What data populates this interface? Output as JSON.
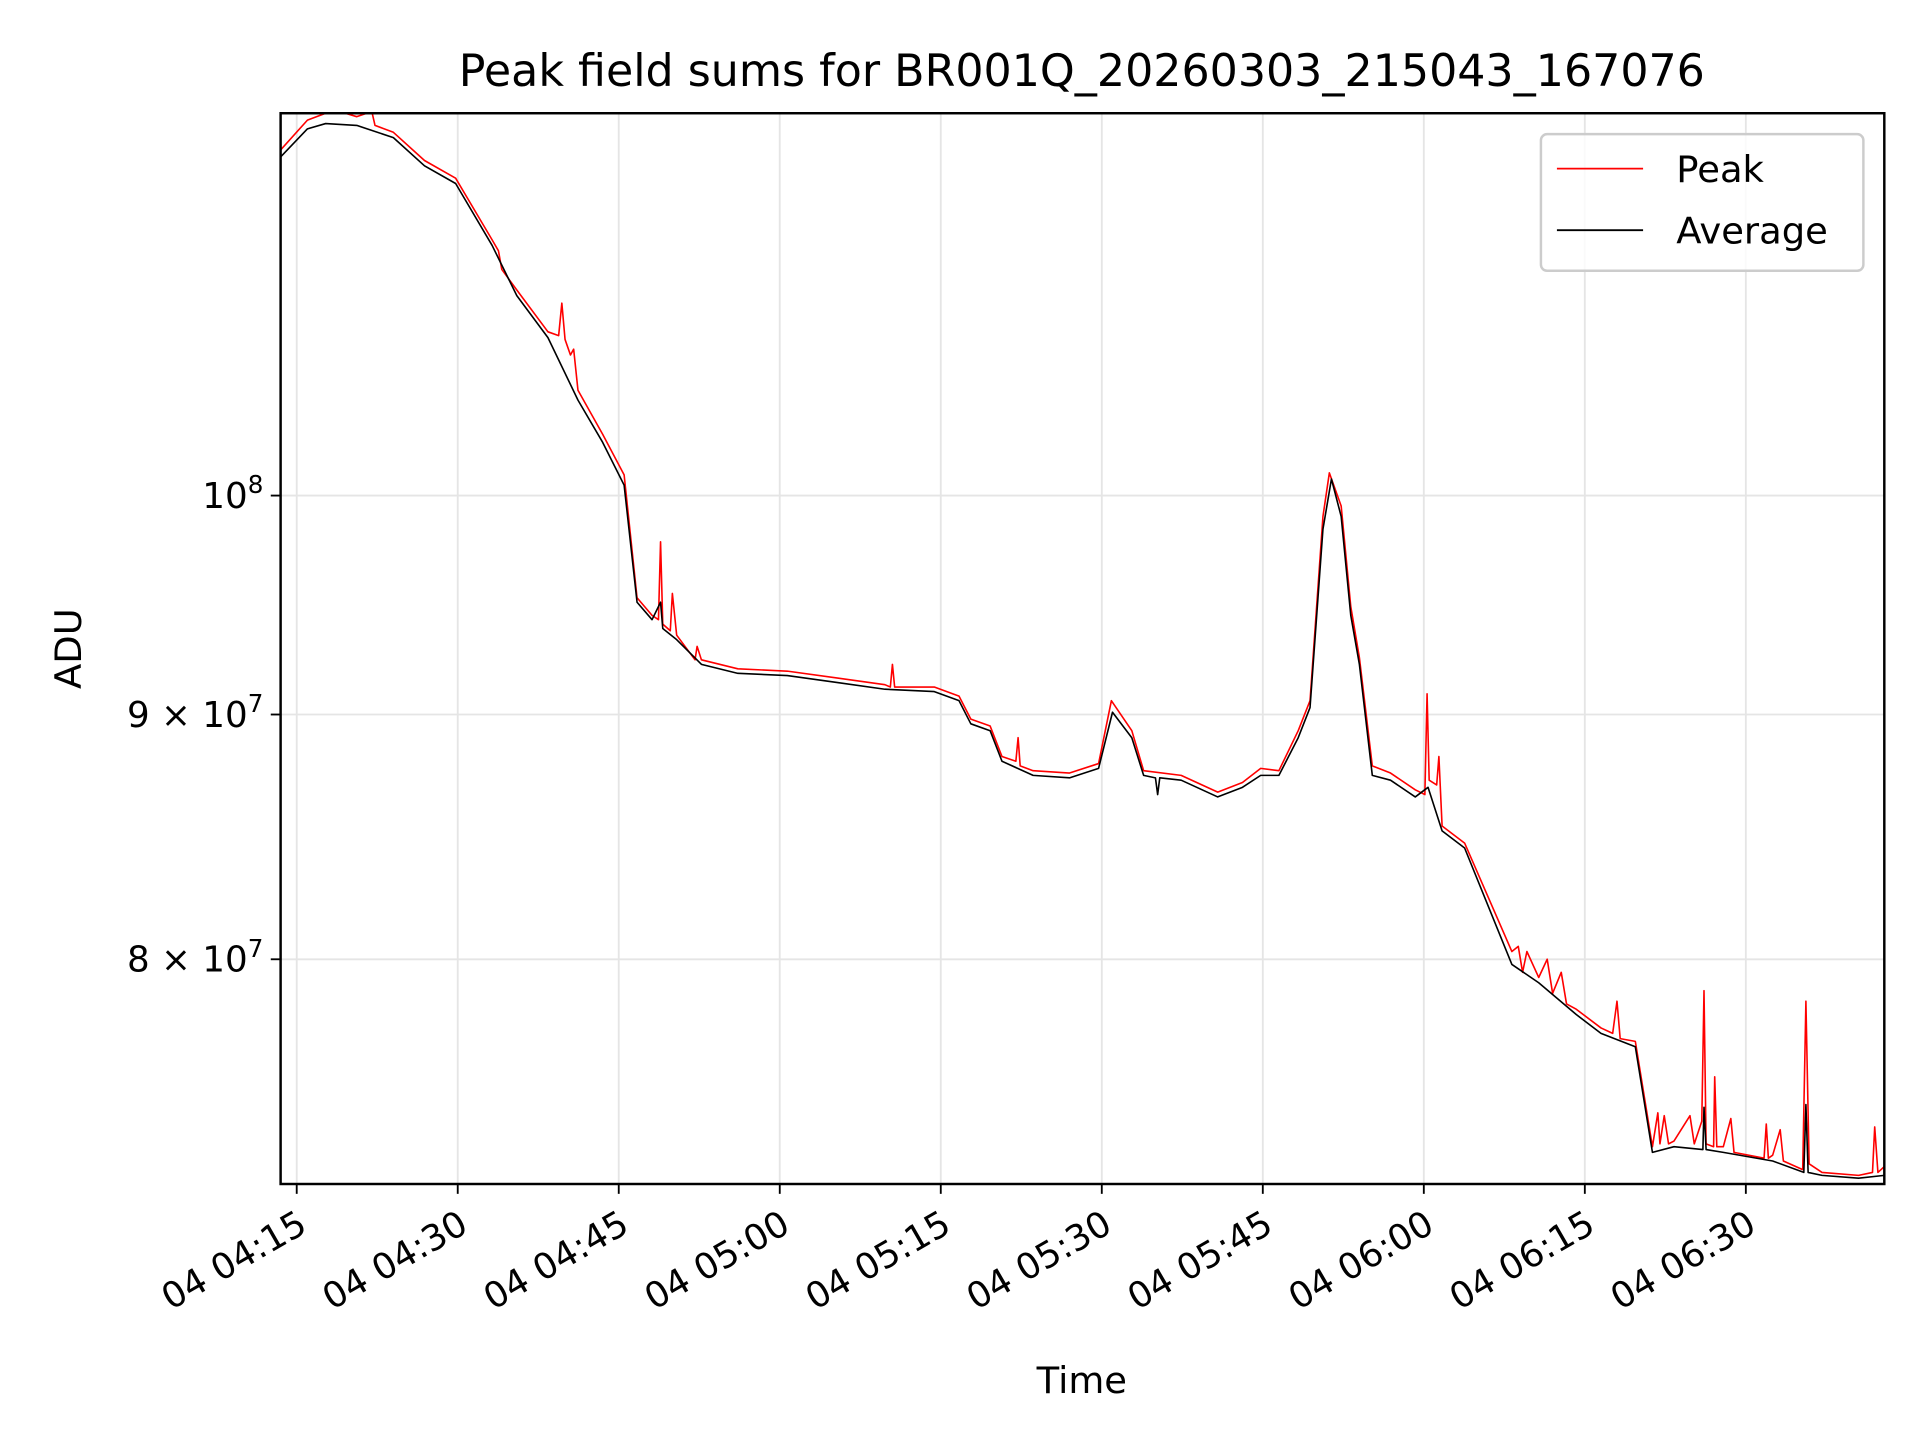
{
  "chart_data": {
    "type": "line",
    "title": "Peak field sums for BR001Q_20260303_215043_167076",
    "xlabel": "Time",
    "ylabel": "ADU",
    "x_unit": "minutes after 04:00 on day 04",
    "xlim": [
      13.5,
      162.9
    ],
    "ylim": [
      71800000.0,
      120200000.0
    ],
    "yscale": "log",
    "grid": true,
    "legend_position": "top-right",
    "x_ticks": [
      {
        "value": 15,
        "label": "04 04:15"
      },
      {
        "value": 30,
        "label": "04 04:30"
      },
      {
        "value": 45,
        "label": "04 04:45"
      },
      {
        "value": 60,
        "label": "04 05:00"
      },
      {
        "value": 75,
        "label": "04 05:15"
      },
      {
        "value": 90,
        "label": "04 05:30"
      },
      {
        "value": 105,
        "label": "04 05:45"
      },
      {
        "value": 120,
        "label": "04 06:00"
      },
      {
        "value": 135,
        "label": "04 06:15"
      },
      {
        "value": 150,
        "label": "04 06:30"
      }
    ],
    "y_ticks": [
      {
        "value": 100000000.0,
        "mantissa": "",
        "base": "10",
        "exponent": "8"
      },
      {
        "value": 90000000.0,
        "mantissa": "9 × ",
        "base": "10",
        "exponent": "7"
      },
      {
        "value": 80000000.0,
        "mantissa": "8 × ",
        "base": "10",
        "exponent": "7"
      }
    ],
    "series": [
      {
        "name": "Peak",
        "color": "#ff0000",
        "points": [
          [
            13.5,
            118100000.0
          ],
          [
            16.0,
            119800000.0
          ],
          [
            17.7,
            120200000.0
          ],
          [
            19,
            120300000.0
          ],
          [
            20.6,
            120000000.0
          ],
          [
            22,
            120300000.0
          ],
          [
            22.3,
            119500000.0
          ],
          [
            24.0,
            119100000.0
          ],
          [
            26.9,
            117500000.0
          ],
          [
            29.8,
            116500000.0
          ],
          [
            33.2,
            113100000.0
          ],
          [
            33.8,
            112500000.0
          ],
          [
            34.1,
            111500000.0
          ],
          [
            35.5,
            110400000.0
          ],
          [
            38.4,
            108200000.0
          ],
          [
            39.4,
            108000000.0
          ],
          [
            39.7,
            109700000.0
          ],
          [
            40.0,
            107800000.0
          ],
          [
            40.5,
            107000000.0
          ],
          [
            40.8,
            107300000.0
          ],
          [
            41.2,
            105200000.0
          ],
          [
            43.5,
            103000000.0
          ],
          [
            45.5,
            101000000.0
          ],
          [
            46.7,
            95200000.0
          ],
          [
            48.1,
            94400000.0
          ],
          [
            48.7,
            94200000.0
          ],
          [
            48.9,
            97800000.0
          ],
          [
            49.1,
            94000000.0
          ],
          [
            49.8,
            93700000.0
          ],
          [
            50.0,
            95400000.0
          ],
          [
            50.4,
            93500000.0
          ],
          [
            52.1,
            92400000.0
          ],
          [
            52.3,
            93000000.0
          ],
          [
            52.7,
            92400000.0
          ],
          [
            56.1,
            92000000.0
          ],
          [
            60.7,
            91900000.0
          ],
          [
            65.3,
            91600000.0
          ],
          [
            69.8,
            91300000.0
          ],
          [
            70.3,
            91200000.0
          ],
          [
            70.5,
            92200000.0
          ],
          [
            70.7,
            91200000.0
          ],
          [
            74.4,
            91200000.0
          ],
          [
            76.7,
            90800000.0
          ],
          [
            77.8,
            89800000.0
          ],
          [
            79.6,
            89500000.0
          ],
          [
            80.7,
            88200000.0
          ],
          [
            82.0,
            88000000.0
          ],
          [
            82.2,
            89000000.0
          ],
          [
            82.4,
            87800000.0
          ],
          [
            83.6,
            87600000.0
          ],
          [
            87.0,
            87500000.0
          ],
          [
            89.7,
            87900000.0
          ],
          [
            90.9,
            90600000.0
          ],
          [
            92.8,
            89300000.0
          ],
          [
            93.9,
            87600000.0
          ],
          [
            97.4,
            87400000.0
          ],
          [
            100.8,
            86700000.0
          ],
          [
            103.1,
            87100000.0
          ],
          [
            104.8,
            87700000.0
          ],
          [
            106.5,
            87600000.0
          ],
          [
            108.3,
            89300000.0
          ],
          [
            109.4,
            90600000.0
          ],
          [
            110.6,
            99000000.0
          ],
          [
            111.2,
            101100000.0
          ],
          [
            112.3,
            99500000.0
          ],
          [
            113.2,
            94800000.0
          ],
          [
            114.0,
            92500000.0
          ],
          [
            115.2,
            87800000.0
          ],
          [
            116.9,
            87500000.0
          ],
          [
            119.2,
            86800000.0
          ],
          [
            120.1,
            86600000.0
          ],
          [
            120.3,
            90900000.0
          ],
          [
            120.5,
            87200000.0
          ],
          [
            121.2,
            87000000.0
          ],
          [
            121.4,
            88200000.0
          ],
          [
            121.7,
            85300000.0
          ],
          [
            123.8,
            84600000.0
          ],
          [
            128.2,
            80300000.0
          ],
          [
            128.8,
            80500000.0
          ],
          [
            129.2,
            79500000.0
          ],
          [
            129.6,
            80300000.0
          ],
          [
            130.7,
            79300000.0
          ],
          [
            131.5,
            80000000.0
          ],
          [
            132.0,
            78700000.0
          ],
          [
            132.8,
            79500000.0
          ],
          [
            133.3,
            78300000.0
          ],
          [
            134.2,
            78100000.0
          ],
          [
            136.5,
            77400000.0
          ],
          [
            137.6,
            77200000.0
          ],
          [
            138.0,
            78400000.0
          ],
          [
            138.3,
            77000000.0
          ],
          [
            139.7,
            76900000.0
          ],
          [
            141.3,
            73100000.0
          ],
          [
            141.8,
            74300000.0
          ],
          [
            142.0,
            73200000.0
          ],
          [
            142.4,
            74200000.0
          ],
          [
            142.8,
            73200000.0
          ],
          [
            143.3,
            73300000.0
          ],
          [
            144.8,
            74200000.0
          ],
          [
            145.2,
            73200000.0
          ],
          [
            145.9,
            74000000.0
          ],
          [
            146.1,
            78800000.0
          ],
          [
            146.3,
            73200000.0
          ],
          [
            147.0,
            73100000.0
          ],
          [
            147.1,
            75600000.0
          ],
          [
            147.3,
            73100000.0
          ],
          [
            147.9,
            73100000.0
          ],
          [
            148.6,
            74100000.0
          ],
          [
            148.9,
            72900000.0
          ],
          [
            151.7,
            72700000.0
          ],
          [
            151.9,
            73900000.0
          ],
          [
            152.1,
            72700000.0
          ],
          [
            152.5,
            72800000.0
          ],
          [
            153.2,
            73700000.0
          ],
          [
            153.5,
            72600000.0
          ],
          [
            155.3,
            72300000.0
          ],
          [
            155.6,
            78400000.0
          ],
          [
            155.9,
            72500000.0
          ],
          [
            157.1,
            72200000.0
          ],
          [
            160.5,
            72100000.0
          ],
          [
            161.8,
            72200000.0
          ],
          [
            162.0,
            73800000.0
          ],
          [
            162.3,
            72200000.0
          ],
          [
            162.9,
            72400000.0
          ]
        ]
      },
      {
        "name": "Average",
        "color": "#000000",
        "points": [
          [
            13.5,
            117700000.0
          ],
          [
            16.0,
            119300000.0
          ],
          [
            17.7,
            119600000.0
          ],
          [
            20.6,
            119500000.0
          ],
          [
            24.0,
            118800000.0
          ],
          [
            26.9,
            117200000.0
          ],
          [
            29.8,
            116200000.0
          ],
          [
            33.2,
            112800000.0
          ],
          [
            35.5,
            110100000.0
          ],
          [
            38.4,
            107900000.0
          ],
          [
            41.2,
            104700000.0
          ],
          [
            43.5,
            102600000.0
          ],
          [
            45.5,
            100500000.0
          ],
          [
            46.7,
            95000000.0
          ],
          [
            48.1,
            94200000.0
          ],
          [
            48.9,
            95000000.0
          ],
          [
            49.1,
            93800000.0
          ],
          [
            50.4,
            93300000.0
          ],
          [
            52.7,
            92200000.0
          ],
          [
            56.1,
            91800000.0
          ],
          [
            60.7,
            91700000.0
          ],
          [
            65.3,
            91400000.0
          ],
          [
            69.8,
            91100000.0
          ],
          [
            74.4,
            91000000.0
          ],
          [
            76.7,
            90600000.0
          ],
          [
            77.8,
            89600000.0
          ],
          [
            79.6,
            89300000.0
          ],
          [
            80.7,
            88000000.0
          ],
          [
            83.6,
            87400000.0
          ],
          [
            87.0,
            87300000.0
          ],
          [
            89.7,
            87700000.0
          ],
          [
            91.0,
            90100000.0
          ],
          [
            92.8,
            89000000.0
          ],
          [
            93.9,
            87400000.0
          ],
          [
            95.0,
            87300000.0
          ],
          [
            95.2,
            86600000.0
          ],
          [
            95.4,
            87300000.0
          ],
          [
            97.4,
            87200000.0
          ],
          [
            100.8,
            86500000.0
          ],
          [
            103.1,
            86900000.0
          ],
          [
            104.8,
            87400000.0
          ],
          [
            106.5,
            87400000.0
          ],
          [
            108.3,
            89000000.0
          ],
          [
            109.4,
            90300000.0
          ],
          [
            110.6,
            98400000.0
          ],
          [
            111.4,
            100800000.0
          ],
          [
            112.3,
            99000000.0
          ],
          [
            113.2,
            94400000.0
          ],
          [
            114.0,
            92200000.0
          ],
          [
            115.2,
            87400000.0
          ],
          [
            116.9,
            87200000.0
          ],
          [
            119.2,
            86500000.0
          ],
          [
            120.4,
            86900000.0
          ],
          [
            121.7,
            85100000.0
          ],
          [
            123.8,
            84400000.0
          ],
          [
            128.2,
            79800000.0
          ],
          [
            130.7,
            79100000.0
          ],
          [
            134.2,
            77900000.0
          ],
          [
            136.5,
            77200000.0
          ],
          [
            139.7,
            76700000.0
          ],
          [
            141.3,
            72900000.0
          ],
          [
            143.3,
            73100000.0
          ],
          [
            146.0,
            73000000.0
          ],
          [
            146.1,
            74500000.0
          ],
          [
            146.3,
            73000000.0
          ],
          [
            147.9,
            72900000.0
          ],
          [
            152.5,
            72600000.0
          ],
          [
            155.4,
            72200000.0
          ],
          [
            155.6,
            74600000.0
          ],
          [
            155.8,
            72200000.0
          ],
          [
            157.1,
            72100000.0
          ],
          [
            160.5,
            72000000.0
          ],
          [
            162.9,
            72100000.0
          ]
        ]
      }
    ]
  }
}
